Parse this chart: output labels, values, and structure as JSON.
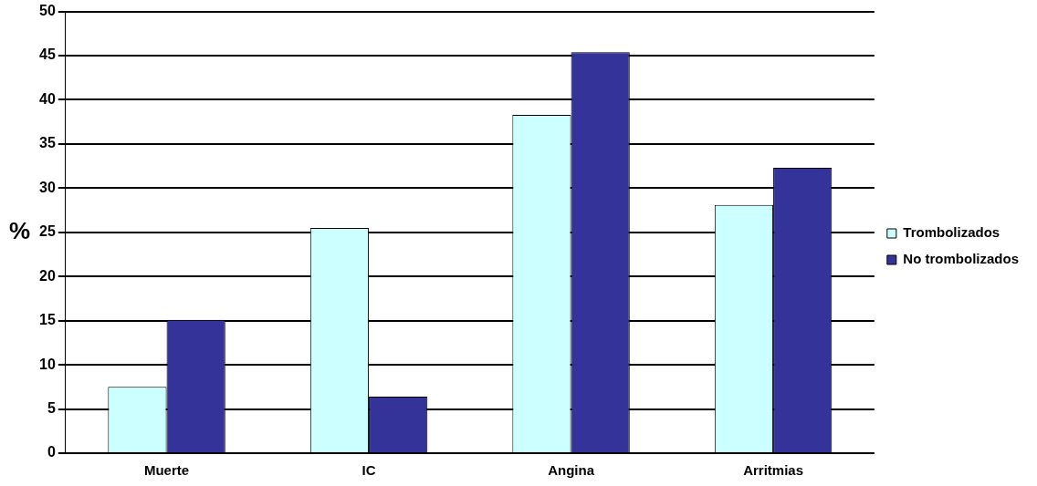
{
  "chart_data": {
    "type": "bar",
    "ylabel": "%",
    "categories": [
      "Muerte",
      "IC",
      "Angina",
      "Arritmias"
    ],
    "series": [
      {
        "name": "Trombolizados",
        "color": "#ccffff",
        "values": [
          7.5,
          25.5,
          38.3,
          28.1
        ]
      },
      {
        "name": "No trombolizados",
        "color": "#333399",
        "values": [
          15.1,
          6.4,
          45.4,
          32.3
        ]
      }
    ],
    "ylim": [
      0,
      50
    ],
    "yticks": [
      0,
      5,
      10,
      15,
      20,
      25,
      30,
      35,
      40,
      45,
      50
    ],
    "grid": "y",
    "legend": "right"
  }
}
